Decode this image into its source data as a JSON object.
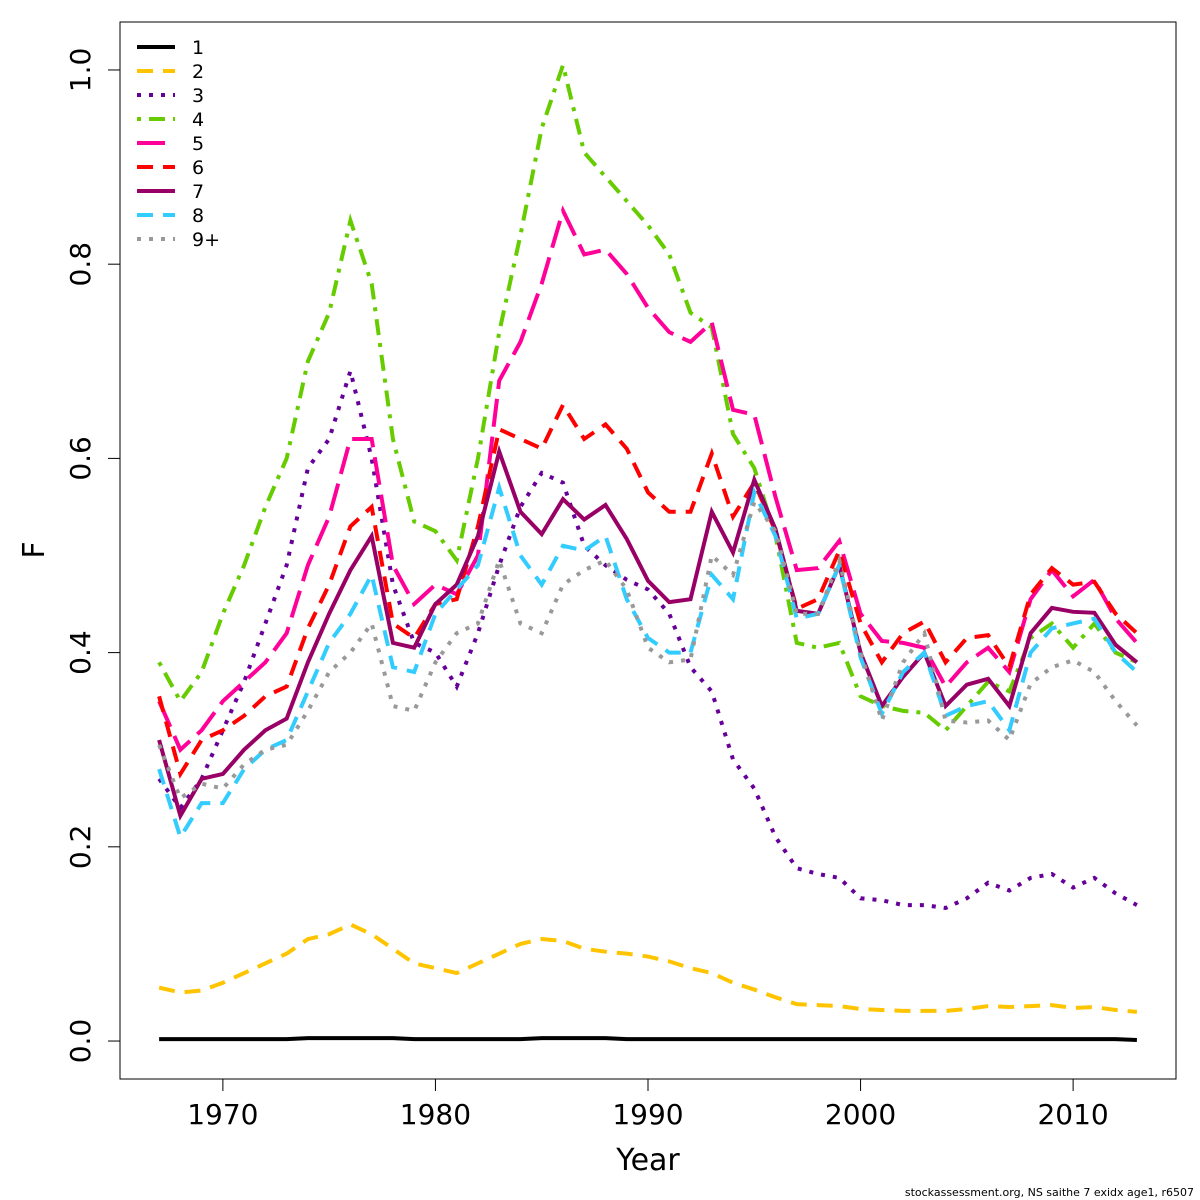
{
  "chart_data": {
    "type": "line",
    "xlabel": "Year",
    "ylabel": "F",
    "caption": "stockassessment.org, NS saithe 7 exidx age1, r6507",
    "x": [
      1967,
      1968,
      1969,
      1970,
      1971,
      1972,
      1973,
      1974,
      1975,
      1976,
      1977,
      1978,
      1979,
      1980,
      1981,
      1982,
      1983,
      1984,
      1985,
      1986,
      1987,
      1988,
      1989,
      1990,
      1991,
      1992,
      1993,
      1994,
      1995,
      1996,
      1997,
      1998,
      1999,
      2000,
      2001,
      2002,
      2003,
      2004,
      2005,
      2006,
      2007,
      2008,
      2009,
      2010,
      2011,
      2012,
      2013
    ],
    "xlim": [
      1965.16,
      2014.84
    ],
    "xticks": [
      1970,
      1980,
      1990,
      2000,
      2010
    ],
    "ylim": [
      -0.0391,
      1.0494
    ],
    "yticks": [
      {
        "value": 0,
        "label": "0.0"
      },
      0.2,
      0.4,
      0.6,
      0.8,
      {
        "value": 1,
        "label": "1.0"
      }
    ],
    "legend": "top-left",
    "series": [
      {
        "name": "1",
        "color": "#000000",
        "dash": "solid",
        "values": [
          0.002,
          0.002,
          0.002,
          0.002,
          0.002,
          0.002,
          0.002,
          0.003,
          0.003,
          0.003,
          0.003,
          0.003,
          0.002,
          0.002,
          0.002,
          0.002,
          0.002,
          0.002,
          0.003,
          0.003,
          0.003,
          0.003,
          0.002,
          0.002,
          0.002,
          0.002,
          0.002,
          0.002,
          0.002,
          0.002,
          0.002,
          0.002,
          0.002,
          0.002,
          0.002,
          0.002,
          0.002,
          0.002,
          0.002,
          0.002,
          0.002,
          0.002,
          0.002,
          0.002,
          0.002,
          0.002,
          0.001
        ]
      },
      {
        "name": "2",
        "color": "#ffc400",
        "dash": "dashed",
        "values": [
          0.055,
          0.05,
          0.052,
          0.06,
          0.07,
          0.08,
          0.09,
          0.105,
          0.11,
          0.12,
          0.11,
          0.095,
          0.08,
          0.075,
          0.07,
          0.08,
          0.09,
          0.1,
          0.105,
          0.103,
          0.095,
          0.092,
          0.09,
          0.087,
          0.082,
          0.075,
          0.07,
          0.06,
          0.053,
          0.045,
          0.038,
          0.037,
          0.036,
          0.033,
          0.032,
          0.031,
          0.031,
          0.031,
          0.033,
          0.036,
          0.035,
          0.036,
          0.037,
          0.034,
          0.035,
          0.032,
          0.03
        ]
      },
      {
        "name": "3",
        "color": "#660099",
        "dash": "dotted",
        "values": [
          0.27,
          0.24,
          0.27,
          0.32,
          0.37,
          0.43,
          0.49,
          0.59,
          0.62,
          0.69,
          0.6,
          0.47,
          0.41,
          0.4,
          0.365,
          0.42,
          0.49,
          0.55,
          0.585,
          0.575,
          0.51,
          0.49,
          0.475,
          0.465,
          0.44,
          0.385,
          0.36,
          0.29,
          0.26,
          0.21,
          0.178,
          0.172,
          0.168,
          0.147,
          0.145,
          0.14,
          0.14,
          0.137,
          0.147,
          0.163,
          0.155,
          0.168,
          0.172,
          0.158,
          0.168,
          0.152,
          0.14
        ]
      },
      {
        "name": "4",
        "color": "#66cc00",
        "dash": "dotdash",
        "values": [
          0.39,
          0.35,
          0.38,
          0.44,
          0.49,
          0.55,
          0.6,
          0.7,
          0.75,
          0.845,
          0.78,
          0.62,
          0.535,
          0.525,
          0.495,
          0.6,
          0.73,
          0.83,
          0.94,
          1.005,
          0.915,
          0.89,
          0.865,
          0.84,
          0.81,
          0.75,
          0.735,
          0.625,
          0.59,
          0.52,
          0.41,
          0.405,
          0.41,
          0.355,
          0.345,
          0.34,
          0.338,
          0.32,
          0.345,
          0.37,
          0.36,
          0.415,
          0.43,
          0.405,
          0.43,
          0.4,
          0.39
        ]
      },
      {
        "name": "5",
        "color": "#ff0099",
        "dash": "longdash",
        "values": [
          0.35,
          0.3,
          0.32,
          0.35,
          0.37,
          0.39,
          0.42,
          0.49,
          0.54,
          0.62,
          0.62,
          0.49,
          0.45,
          0.47,
          0.46,
          0.5,
          0.68,
          0.72,
          0.78,
          0.855,
          0.81,
          0.815,
          0.79,
          0.755,
          0.73,
          0.72,
          0.74,
          0.65,
          0.645,
          0.56,
          0.485,
          0.487,
          0.515,
          0.44,
          0.412,
          0.41,
          0.405,
          0.365,
          0.39,
          0.405,
          0.38,
          0.455,
          0.485,
          0.458,
          0.475,
          0.435,
          0.41
        ]
      },
      {
        "name": "6",
        "color": "#ff0000",
        "dash": "dashed",
        "values": [
          0.355,
          0.275,
          0.31,
          0.32,
          0.335,
          0.355,
          0.365,
          0.425,
          0.47,
          0.53,
          0.55,
          0.43,
          0.415,
          0.45,
          0.455,
          0.53,
          0.63,
          0.62,
          0.61,
          0.655,
          0.62,
          0.635,
          0.61,
          0.565,
          0.545,
          0.545,
          0.605,
          0.54,
          0.575,
          0.525,
          0.445,
          0.455,
          0.505,
          0.43,
          0.39,
          0.42,
          0.432,
          0.39,
          0.415,
          0.418,
          0.385,
          0.46,
          0.487,
          0.47,
          0.473,
          0.44,
          0.42
        ]
      },
      {
        "name": "7",
        "color": "#990066",
        "dash": "solid",
        "values": [
          0.31,
          0.232,
          0.27,
          0.275,
          0.3,
          0.32,
          0.332,
          0.39,
          0.44,
          0.485,
          0.52,
          0.41,
          0.405,
          0.45,
          0.47,
          0.52,
          0.607,
          0.545,
          0.522,
          0.558,
          0.537,
          0.552,
          0.517,
          0.474,
          0.452,
          0.455,
          0.545,
          0.503,
          0.578,
          0.527,
          0.443,
          0.44,
          0.49,
          0.4,
          0.345,
          0.375,
          0.4,
          0.345,
          0.367,
          0.373,
          0.345,
          0.42,
          0.446,
          0.442,
          0.441,
          0.408,
          0.39
        ]
      },
      {
        "name": "8",
        "color": "#33ccff",
        "dash": "dashed",
        "values": [
          0.28,
          0.21,
          0.245,
          0.245,
          0.28,
          0.3,
          0.31,
          0.36,
          0.41,
          0.44,
          0.48,
          0.385,
          0.38,
          0.44,
          0.465,
          0.49,
          0.57,
          0.5,
          0.47,
          0.51,
          0.505,
          0.52,
          0.455,
          0.415,
          0.4,
          0.4,
          0.48,
          0.455,
          0.565,
          0.52,
          0.435,
          0.44,
          0.49,
          0.395,
          0.337,
          0.38,
          0.4,
          0.335,
          0.345,
          0.35,
          0.32,
          0.4,
          0.425,
          0.43,
          0.435,
          0.4,
          0.38
        ]
      },
      {
        "name": "9+",
        "color": "#999999",
        "dash": "dotted",
        "values": [
          0.305,
          0.25,
          0.265,
          0.26,
          0.285,
          0.3,
          0.305,
          0.34,
          0.38,
          0.4,
          0.43,
          0.345,
          0.34,
          0.39,
          0.42,
          0.43,
          0.495,
          0.43,
          0.42,
          0.47,
          0.485,
          0.495,
          0.465,
          0.405,
          0.39,
          0.393,
          0.5,
          0.48,
          0.555,
          0.525,
          0.44,
          0.44,
          0.495,
          0.4,
          0.33,
          0.39,
          0.42,
          0.33,
          0.328,
          0.33,
          0.31,
          0.368,
          0.385,
          0.392,
          0.38,
          0.35,
          0.325
        ]
      }
    ]
  }
}
